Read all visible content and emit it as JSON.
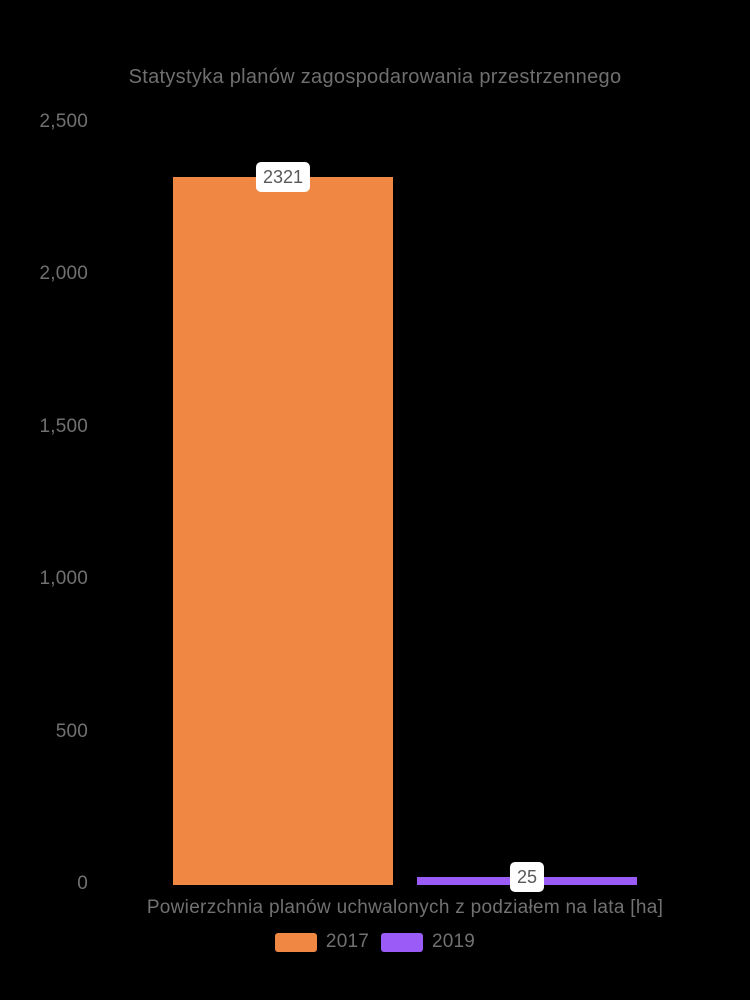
{
  "chart_data": {
    "type": "bar",
    "title": "Statystyka planów zagospodarowania przestrzennego",
    "categories": [
      "Powierzchnia planów uchwalonych z podziałem na lata [ha]"
    ],
    "series": [
      {
        "name": "2017",
        "values": [
          2321
        ],
        "data_label": "2321",
        "color": "#F08742"
      },
      {
        "name": "2019",
        "values": [
          25
        ],
        "data_label": "25",
        "color": "#9B5BF7"
      }
    ],
    "ylim": [
      0,
      2500
    ],
    "y_tick_labels": [
      "2,500",
      "2,000",
      "1,500",
      "1,000",
      "500",
      "0"
    ],
    "xlabel": "",
    "grid": false,
    "legend_position": "bottom",
    "colors": {
      "background": "#000000",
      "axis_text": "#717171",
      "title_text": "#6F6F6F",
      "data_label_background": "#FFFFFF",
      "data_label_text": "#58595B"
    }
  }
}
